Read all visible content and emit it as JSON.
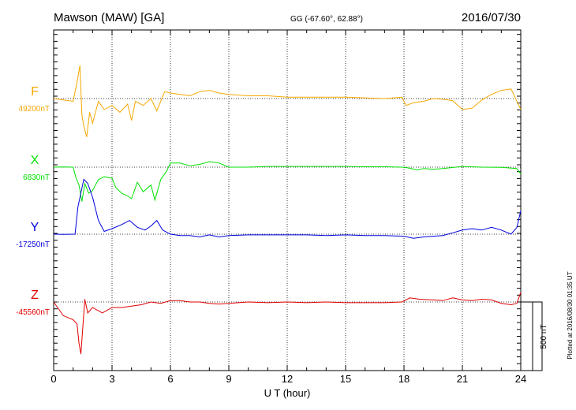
{
  "header": {
    "station": "Mawson (MAW)  [GA]",
    "coords": "GG (-67.60°,  62.88°)",
    "date": "2016/07/30"
  },
  "footer": {
    "plotted_at": "Plotted at 2016/08/30 01:35 UT"
  },
  "colors": {
    "F": "#f5a800",
    "X": "#00e000",
    "Y": "#0000e0",
    "Z": "#e00000",
    "axis": "#000000"
  },
  "chart_data": {
    "type": "line",
    "title": "Mawson (MAW)  [GA]",
    "xlabel": "U T (hour)",
    "ylabel": "",
    "xlim": [
      0,
      24
    ],
    "x_ticks": [
      "0",
      "3",
      "6",
      "9",
      "12",
      "15",
      "18",
      "21",
      "24"
    ],
    "scale_bar": "500 nT",
    "scale_bar_nT": 500,
    "grid": "vertical dotted every 3 h, horizontal dotted at each baseline",
    "series": [
      {
        "name": "F",
        "baseline_label": "49200nT",
        "baseline_nT": 49200,
        "points": [
          [
            0,
            49200
          ],
          [
            1.0,
            49180
          ],
          [
            1.2,
            49320
          ],
          [
            1.35,
            49440
          ],
          [
            1.45,
            49080
          ],
          [
            1.55,
            49000
          ],
          [
            1.7,
            48920
          ],
          [
            1.85,
            49100
          ],
          [
            2.0,
            49020
          ],
          [
            2.3,
            49180
          ],
          [
            2.6,
            49120
          ],
          [
            3.0,
            49150
          ],
          [
            3.4,
            49100
          ],
          [
            3.8,
            49160
          ],
          [
            4.0,
            49040
          ],
          [
            4.2,
            49180
          ],
          [
            4.6,
            49150
          ],
          [
            5.0,
            49200
          ],
          [
            5.3,
            49110
          ],
          [
            5.5,
            49180
          ],
          [
            5.7,
            49250
          ],
          [
            6.0,
            49240
          ],
          [
            6.5,
            49230
          ],
          [
            7.0,
            49220
          ],
          [
            7.5,
            49250
          ],
          [
            8.0,
            49260
          ],
          [
            8.5,
            49240
          ],
          [
            9.0,
            49230
          ],
          [
            10,
            49220
          ],
          [
            11,
            49220
          ],
          [
            12,
            49210
          ],
          [
            13,
            49210
          ],
          [
            14,
            49210
          ],
          [
            15,
            49210
          ],
          [
            16,
            49205
          ],
          [
            17,
            49200
          ],
          [
            17.9,
            49210
          ],
          [
            18.1,
            49150
          ],
          [
            18.5,
            49170
          ],
          [
            19,
            49180
          ],
          [
            19.5,
            49200
          ],
          [
            20,
            49195
          ],
          [
            20.5,
            49185
          ],
          [
            21,
            49120
          ],
          [
            21.5,
            49130
          ],
          [
            22,
            49190
          ],
          [
            22.5,
            49230
          ],
          [
            23,
            49260
          ],
          [
            23.5,
            49270
          ],
          [
            23.8,
            49180
          ],
          [
            24,
            49120
          ]
        ]
      },
      {
        "name": "X",
        "baseline_label": "6830nT",
        "baseline_nT": 6830,
        "points": [
          [
            0,
            6830
          ],
          [
            0.5,
            6832
          ],
          [
            1.0,
            6830
          ],
          [
            1.15,
            6750
          ],
          [
            1.3,
            6700
          ],
          [
            1.45,
            6580
          ],
          [
            1.6,
            6710
          ],
          [
            1.8,
            6640
          ],
          [
            2.0,
            6660
          ],
          [
            2.3,
            6740
          ],
          [
            2.6,
            6760
          ],
          [
            3.0,
            6750
          ],
          [
            3.2,
            6680
          ],
          [
            3.5,
            6640
          ],
          [
            3.8,
            6620
          ],
          [
            4.0,
            6600
          ],
          [
            4.3,
            6720
          ],
          [
            4.6,
            6650
          ],
          [
            5.0,
            6700
          ],
          [
            5.2,
            6590
          ],
          [
            5.5,
            6740
          ],
          [
            5.8,
            6800
          ],
          [
            6.0,
            6860
          ],
          [
            6.5,
            6860
          ],
          [
            7.0,
            6840
          ],
          [
            7.5,
            6850
          ],
          [
            8.0,
            6870
          ],
          [
            8.5,
            6860
          ],
          [
            9.0,
            6830
          ],
          [
            10,
            6830
          ],
          [
            11,
            6835
          ],
          [
            12,
            6835
          ],
          [
            13,
            6835
          ],
          [
            14,
            6835
          ],
          [
            15,
            6835
          ],
          [
            16,
            6833
          ],
          [
            17,
            6833
          ],
          [
            17.9,
            6830
          ],
          [
            18.2,
            6825
          ],
          [
            18.7,
            6810
          ],
          [
            19,
            6820
          ],
          [
            19.5,
            6815
          ],
          [
            20,
            6820
          ],
          [
            21,
            6835
          ],
          [
            22,
            6830
          ],
          [
            23,
            6828
          ],
          [
            23.8,
            6820
          ],
          [
            24,
            6780
          ]
        ]
      },
      {
        "name": "Y",
        "baseline_label": "-17250nT",
        "baseline_nT": -17250,
        "points": [
          [
            0,
            -17250
          ],
          [
            0.5,
            -17252
          ],
          [
            1.1,
            -17250
          ],
          [
            1.25,
            -17050
          ],
          [
            1.4,
            -16950
          ],
          [
            1.55,
            -16850
          ],
          [
            1.75,
            -16880
          ],
          [
            2.0,
            -16980
          ],
          [
            2.3,
            -17150
          ],
          [
            2.6,
            -17230
          ],
          [
            3.0,
            -17210
          ],
          [
            3.5,
            -17180
          ],
          [
            3.9,
            -17150
          ],
          [
            4.3,
            -17200
          ],
          [
            4.7,
            -17220
          ],
          [
            5.0,
            -17190
          ],
          [
            5.3,
            -17150
          ],
          [
            5.6,
            -17220
          ],
          [
            6.0,
            -17250
          ],
          [
            6.5,
            -17260
          ],
          [
            7.0,
            -17260
          ],
          [
            7.5,
            -17270
          ],
          [
            8.0,
            -17255
          ],
          [
            8.5,
            -17270
          ],
          [
            9.0,
            -17260
          ],
          [
            10,
            -17255
          ],
          [
            11,
            -17255
          ],
          [
            12,
            -17255
          ],
          [
            13,
            -17255
          ],
          [
            14,
            -17260
          ],
          [
            15,
            -17255
          ],
          [
            16,
            -17260
          ],
          [
            17,
            -17260
          ],
          [
            18,
            -17265
          ],
          [
            18.5,
            -17280
          ],
          [
            19,
            -17270
          ],
          [
            19.5,
            -17265
          ],
          [
            20,
            -17260
          ],
          [
            20.5,
            -17240
          ],
          [
            21,
            -17220
          ],
          [
            21.5,
            -17210
          ],
          [
            22,
            -17220
          ],
          [
            22.5,
            -17200
          ],
          [
            23,
            -17220
          ],
          [
            23.5,
            -17250
          ],
          [
            23.8,
            -17200
          ],
          [
            24,
            -17080
          ]
        ]
      },
      {
        "name": "Z",
        "baseline_label": "-45560nT",
        "baseline_nT": -45560,
        "points": [
          [
            0,
            -45560
          ],
          [
            0.5,
            -45660
          ],
          [
            1.0,
            -45690
          ],
          [
            1.2,
            -45720
          ],
          [
            1.3,
            -45860
          ],
          [
            1.4,
            -45940
          ],
          [
            1.5,
            -45740
          ],
          [
            1.6,
            -45540
          ],
          [
            1.75,
            -45640
          ],
          [
            2.0,
            -45600
          ],
          [
            2.5,
            -45640
          ],
          [
            3.0,
            -45600
          ],
          [
            3.5,
            -45600
          ],
          [
            4.0,
            -45590
          ],
          [
            4.5,
            -45580
          ],
          [
            5.0,
            -45560
          ],
          [
            5.5,
            -45570
          ],
          [
            6.0,
            -45550
          ],
          [
            6.5,
            -45550
          ],
          [
            7.0,
            -45560
          ],
          [
            7.5,
            -45560
          ],
          [
            8.0,
            -45570
          ],
          [
            8.5,
            -45575
          ],
          [
            9.0,
            -45570
          ],
          [
            10,
            -45560
          ],
          [
            11,
            -45565
          ],
          [
            12,
            -45560
          ],
          [
            13,
            -45565
          ],
          [
            14,
            -45560
          ],
          [
            15,
            -45565
          ],
          [
            16,
            -45565
          ],
          [
            17,
            -45565
          ],
          [
            17.9,
            -45560
          ],
          [
            18.3,
            -45530
          ],
          [
            18.8,
            -45540
          ],
          [
            19.5,
            -45545
          ],
          [
            20,
            -45550
          ],
          [
            20.5,
            -45530
          ],
          [
            21,
            -45545
          ],
          [
            21.5,
            -45550
          ],
          [
            22,
            -45540
          ],
          [
            22.5,
            -45545
          ],
          [
            23,
            -45570
          ],
          [
            23.5,
            -45580
          ],
          [
            23.8,
            -45570
          ],
          [
            24,
            -45490
          ]
        ]
      }
    ]
  }
}
